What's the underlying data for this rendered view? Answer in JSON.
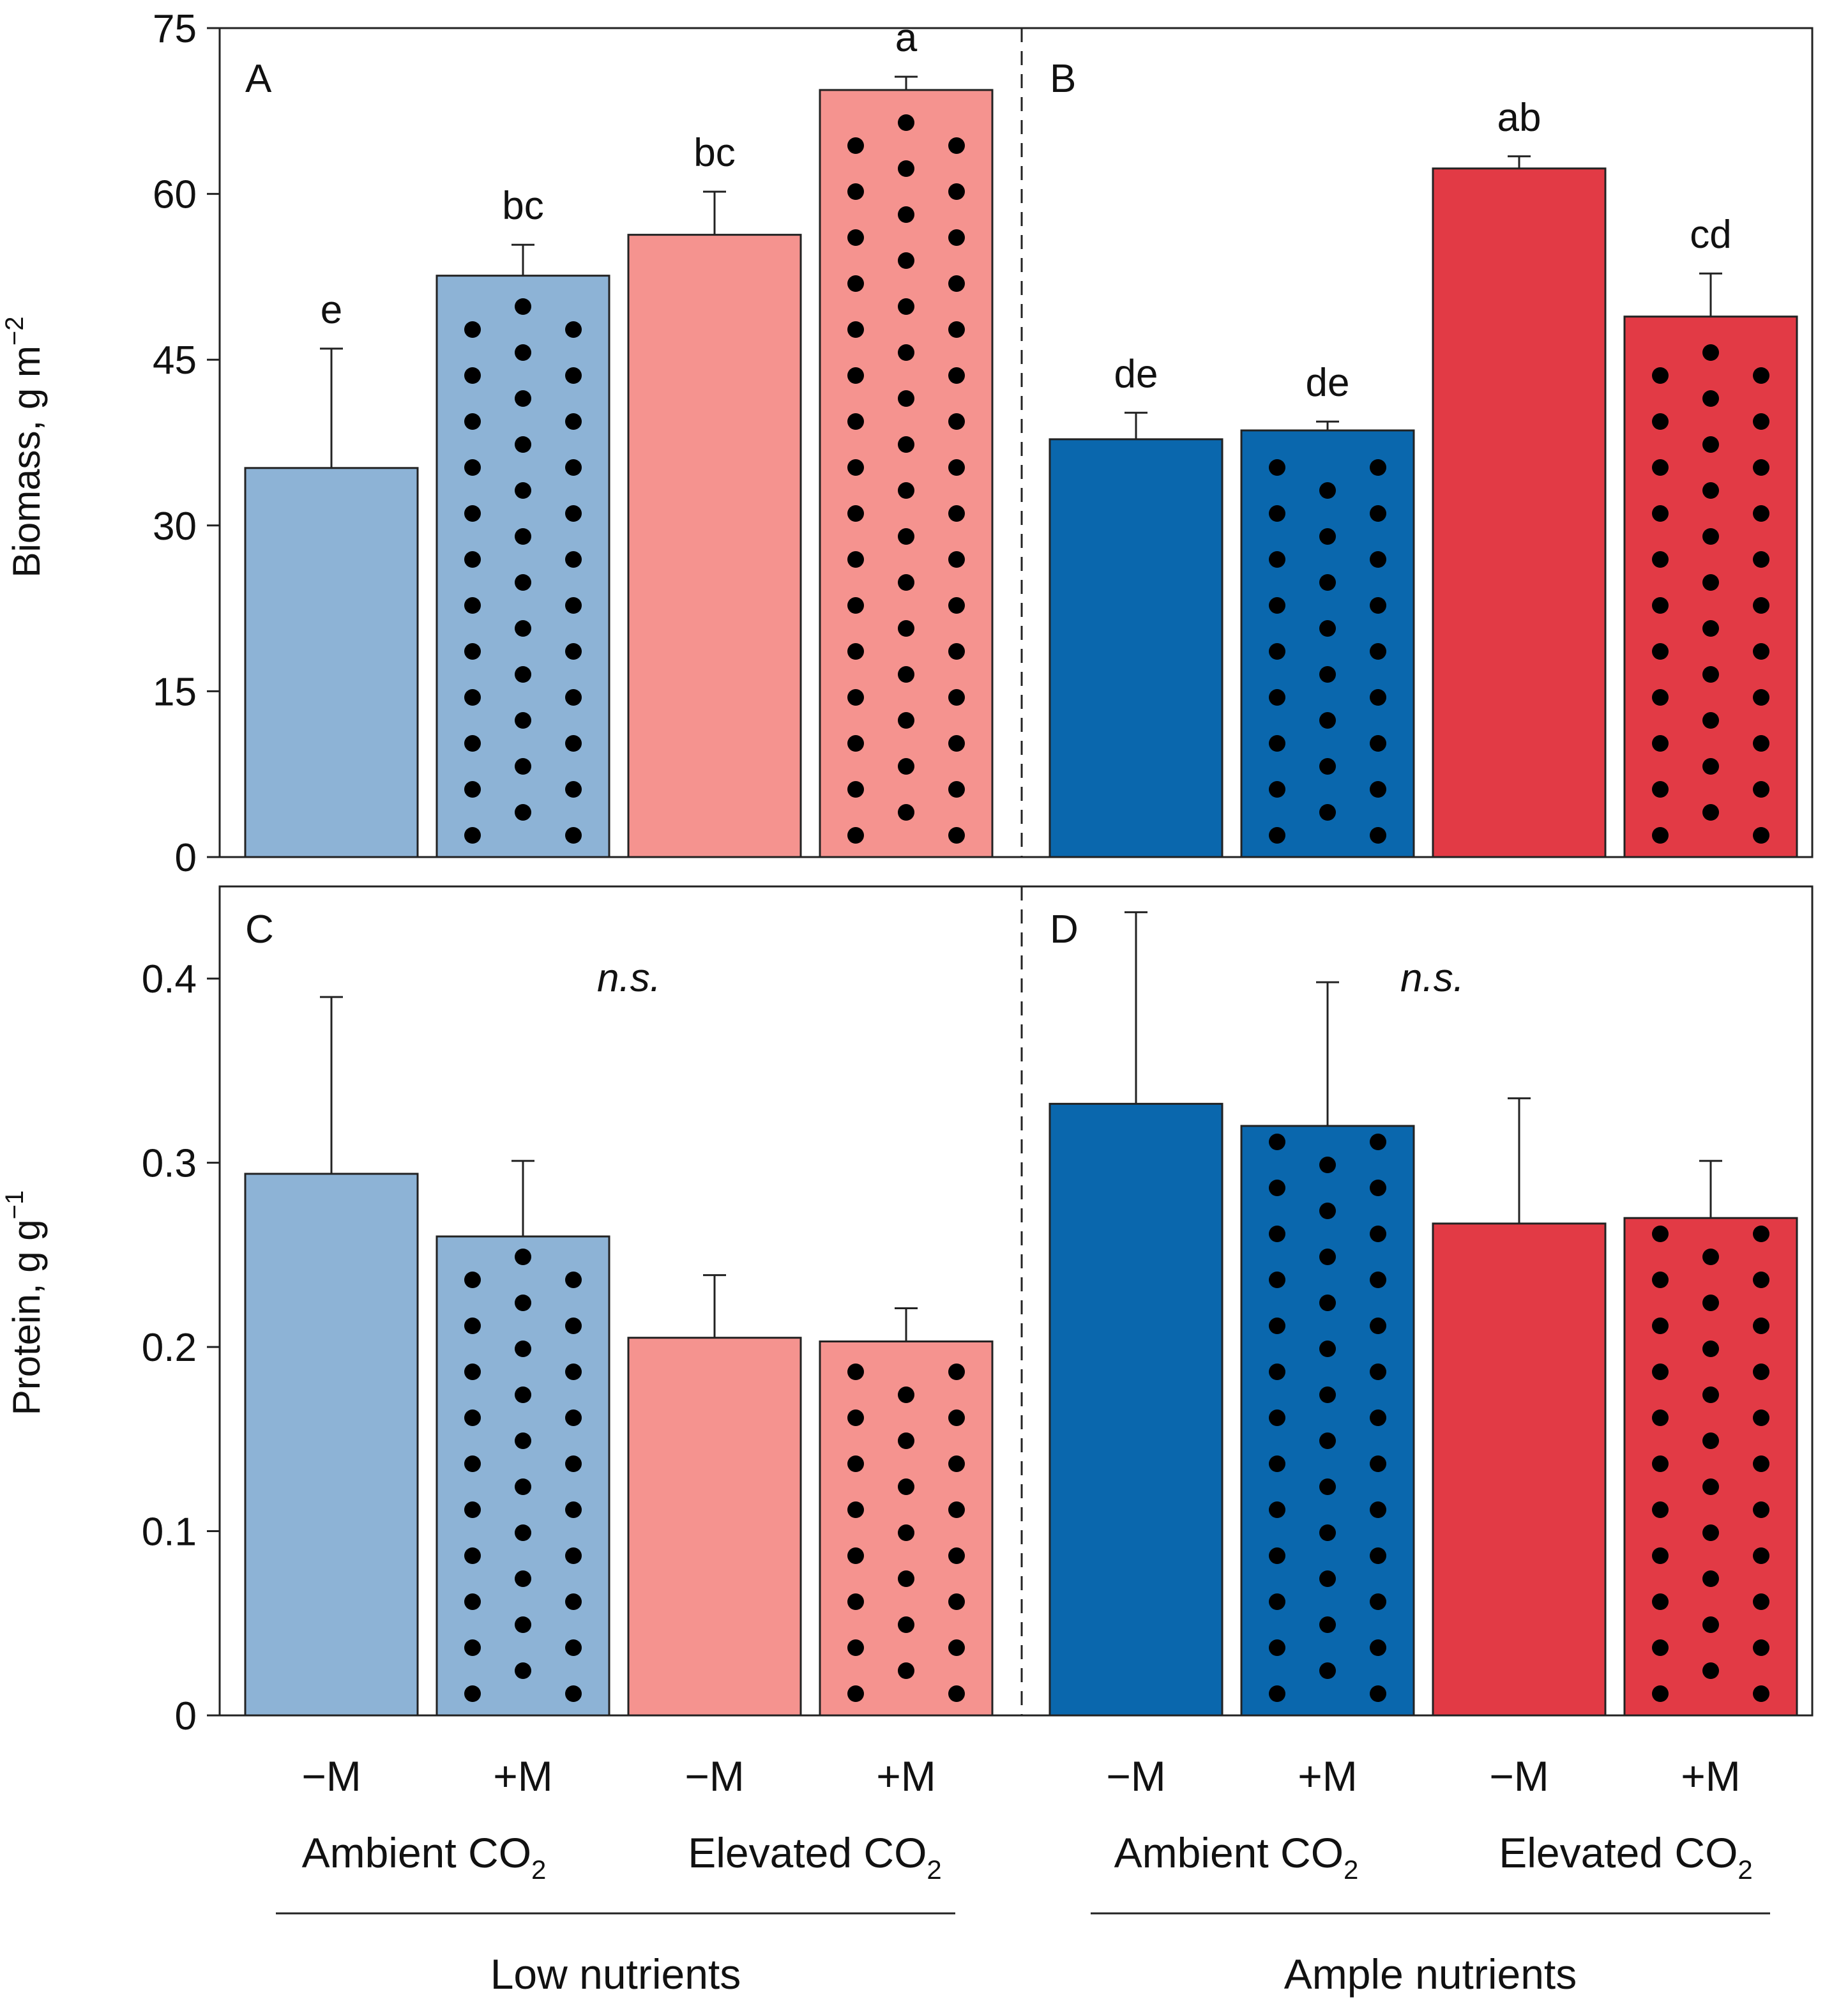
{
  "chart_data": [
    {
      "type": "bar",
      "panel": "A",
      "ylabel": "Biomass, g m",
      "ylabel_sup": "−2",
      "ylim": [
        0,
        75
      ],
      "yticks": [
        "0",
        "15",
        "30",
        "45",
        "60",
        "75"
      ],
      "categories": [
        "−M",
        "+M",
        "−M",
        "+M"
      ],
      "groups": [
        "Ambient CO2",
        "Elevated CO2"
      ],
      "nutrient": "Low nutrients",
      "values": [
        35.2,
        52.6,
        56.3,
        69.4
      ],
      "errors": [
        10.8,
        2.8,
        3.9,
        1.2
      ],
      "letters": [
        "e",
        "bc",
        "bc",
        "a"
      ],
      "dotted": [
        false,
        true,
        false,
        true
      ],
      "colors": [
        "#8db3d6",
        "#8db3d6",
        "#f5938f",
        "#f5938f"
      ]
    },
    {
      "type": "bar",
      "panel": "B",
      "ylim": [
        0,
        75
      ],
      "categories": [
        "−M",
        "+M",
        "−M",
        "+M"
      ],
      "groups": [
        "Ambient CO2",
        "Elevated CO2"
      ],
      "nutrient": "Ample nutrients",
      "values": [
        37.8,
        38.6,
        62.3,
        48.9
      ],
      "errors": [
        2.4,
        0.8,
        1.1,
        3.9
      ],
      "letters": [
        "de",
        "de",
        "ab",
        "cd"
      ],
      "dotted": [
        false,
        true,
        false,
        true
      ],
      "colors": [
        "#0a67ad",
        "#0a67ad",
        "#e23a45",
        "#e23a45"
      ]
    },
    {
      "type": "bar",
      "panel": "C",
      "ylabel": "Protein, g g",
      "ylabel_sup": "−1",
      "ylim": [
        0,
        0.45
      ],
      "yticks": [
        "0",
        "0.1",
        "0.2",
        "0.3",
        "0.4"
      ],
      "categories": [
        "−M",
        "+M",
        "−M",
        "+M"
      ],
      "groups": [
        "Ambient CO2",
        "Elevated CO2"
      ],
      "nutrient": "Low nutrients",
      "values": [
        0.294,
        0.26,
        0.205,
        0.203
      ],
      "errors": [
        0.096,
        0.041,
        0.034,
        0.018
      ],
      "annotation": "n.s.",
      "dotted": [
        false,
        true,
        false,
        true
      ],
      "colors": [
        "#8db3d6",
        "#8db3d6",
        "#f5938f",
        "#f5938f"
      ]
    },
    {
      "type": "bar",
      "panel": "D",
      "ylim": [
        0,
        0.45
      ],
      "categories": [
        "−M",
        "+M",
        "−M",
        "+M"
      ],
      "groups": [
        "Ambient CO2",
        "Elevated CO2"
      ],
      "nutrient": "Ample nutrients",
      "values": [
        0.332,
        0.32,
        0.267,
        0.27
      ],
      "errors": [
        0.104,
        0.078,
        0.068,
        0.031
      ],
      "annotation": "n.s.",
      "dotted": [
        false,
        true,
        false,
        true
      ],
      "colors": [
        "#0a67ad",
        "#0a67ad",
        "#e23a45",
        "#e23a45"
      ]
    }
  ],
  "x_axis": {
    "categories": [
      "−M",
      "+M",
      "−M",
      "+M",
      "−M",
      "+M",
      "−M",
      "+M"
    ],
    "group_labels": [
      {
        "text": "Ambient CO",
        "sub": "2"
      },
      {
        "text": "Elevated CO",
        "sub": "2"
      },
      {
        "text": "Ambient CO",
        "sub": "2"
      },
      {
        "text": "Elevated CO",
        "sub": "2"
      }
    ],
    "nutrient_labels": [
      "Low nutrients",
      "Ample nutrients"
    ]
  }
}
